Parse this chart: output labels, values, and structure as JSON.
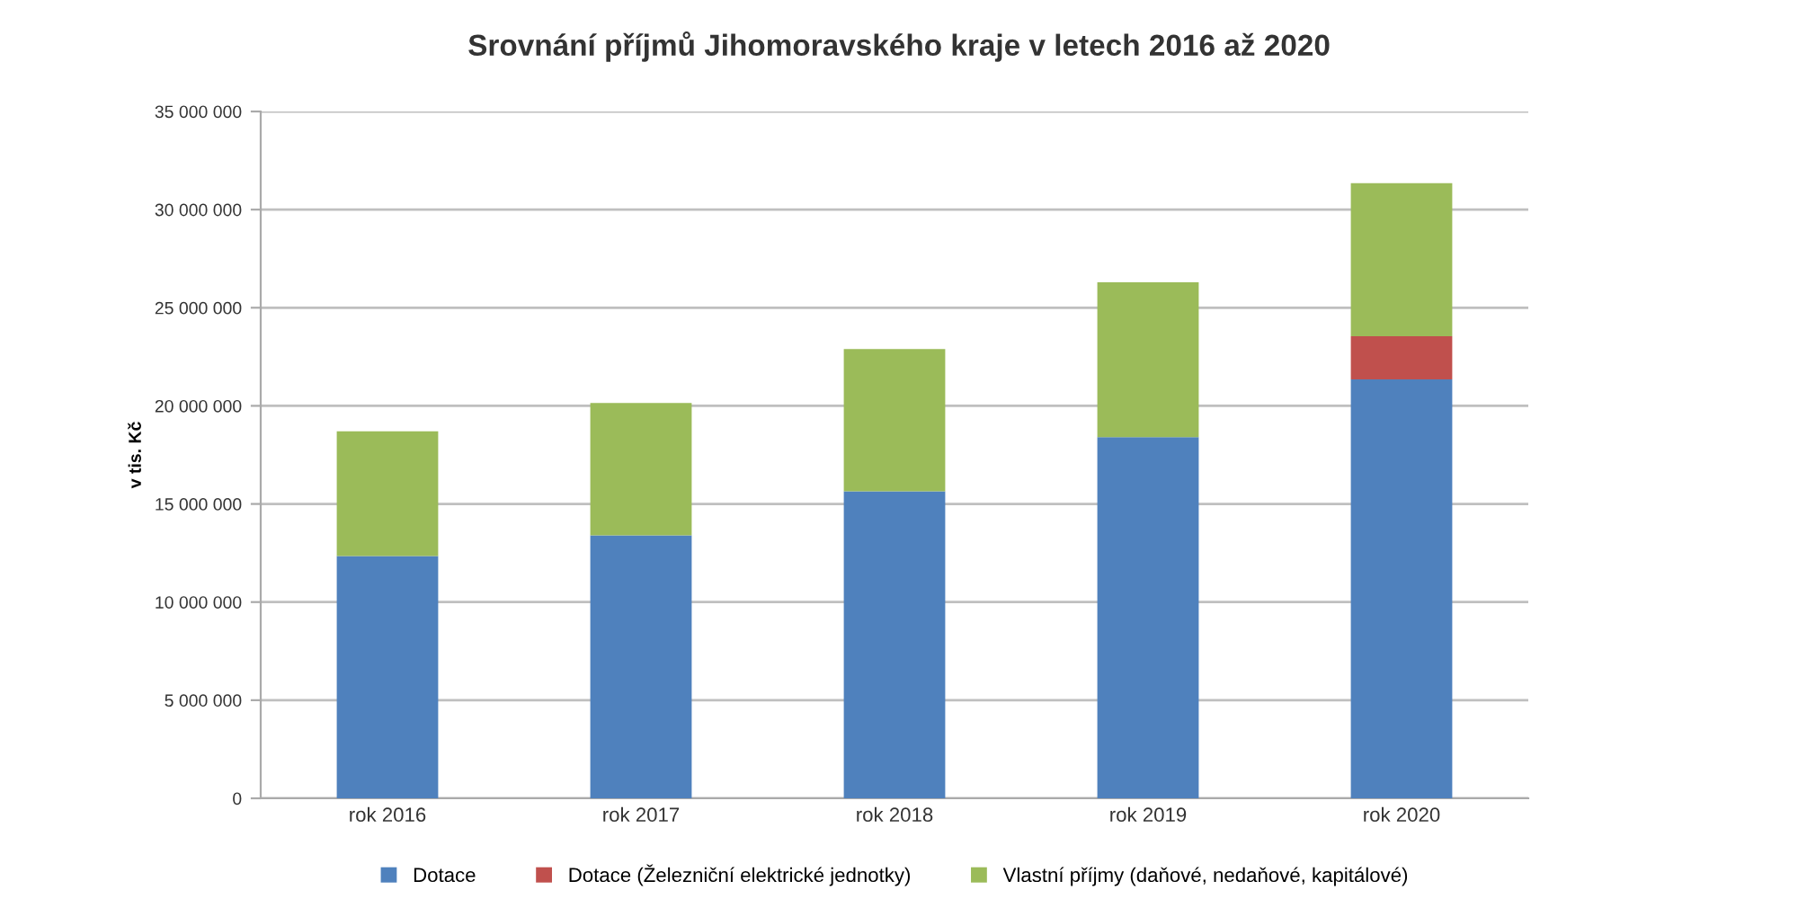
{
  "chart_data": {
    "type": "bar",
    "stacked": true,
    "title": "Srovnání příjmů Jihomoravského kraje v letech 2016 až 2020",
    "ylabel": "v tis. Kč",
    "categories": [
      "rok 2016",
      "rok 2017",
      "rok 2018",
      "rok 2019",
      "rok 2020"
    ],
    "series": [
      {
        "name": "Dotace",
        "color": "#4f81bd",
        "values": [
          12350000,
          13400000,
          15650000,
          18400000,
          21350000
        ]
      },
      {
        "name": "Dotace (Železniční elektrické jednotky)",
        "color": "#c0504d",
        "values": [
          null,
          null,
          null,
          null,
          2200000
        ]
      },
      {
        "name": "Vlastní příjmy (daňové, nedaňové, kapitálové)",
        "color": "#9bbb59",
        "values": [
          6350000,
          6750000,
          7250000,
          7900000,
          7800000
        ]
      }
    ],
    "ylim": [
      0,
      35000000
    ],
    "yticks": [
      0,
      {
        "value": 5000000,
        "label": "5 000 000"
      },
      {
        "value": 10000000,
        "label": "10 000 000"
      },
      {
        "value": 15000000,
        "label": "15 000 000"
      },
      {
        "value": 20000000,
        "label": "20 000 000"
      },
      {
        "value": 25000000,
        "label": "25 000 000"
      },
      {
        "value": 30000000,
        "label": "30 000 000"
      },
      {
        "value": 35000000,
        "label": "35 000 000"
      }
    ],
    "grid": "y",
    "legend": "bottom"
  }
}
